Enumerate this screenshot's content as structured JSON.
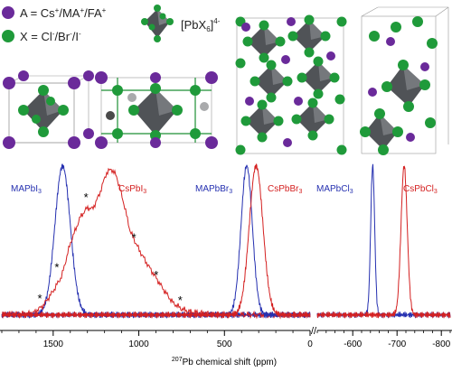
{
  "legend": {
    "a_prefix": "A = Cs",
    "a_sup1": "+",
    "a_mid1": "/MA",
    "a_sup2": "+",
    "a_mid2": "/FA",
    "a_sup3": "+",
    "x_prefix": "X = Cl",
    "x_sup1": "-",
    "x_mid1": "/Br",
    "x_sup2": "-",
    "x_mid2": "/I",
    "x_sup3": "-",
    "octa_pre": "[PbX",
    "octa_sub": "6",
    "octa_post": "]",
    "octa_sup": "4-"
  },
  "colors": {
    "a_site": "#6a2a9a",
    "x_site": "#1f9a3a",
    "octahedron": "#55585c",
    "red_trace": "#d42020",
    "blue_trace": "#2530b0"
  },
  "axis": {
    "xlabel_sup": "207",
    "xlabel": "Pb chemical shift (ppm)",
    "break_mark": "//"
  },
  "chart_data": {
    "type": "line",
    "xlabel": "207Pb chemical shift (ppm)",
    "panels": [
      {
        "name": "left",
        "xlim": [
          1800,
          0
        ],
        "ticks": [
          1500,
          1000,
          500,
          0
        ],
        "tick_labels": [
          "1500",
          "1000",
          "500",
          "0"
        ]
      },
      {
        "name": "right",
        "xlim": [
          -520,
          -820
        ],
        "ticks": [
          -600,
          -700,
          -800
        ],
        "tick_labels": [
          "-600",
          "-700",
          "-800"
        ]
      }
    ],
    "series": [
      {
        "name": "MAPbI3",
        "label_base": "MAPbI",
        "label_sub": "3",
        "color": "blue",
        "panel": "left",
        "center": 1445,
        "width": 45
      },
      {
        "name": "CsPbI3",
        "label_base": "CsPbI",
        "label_sub": "3",
        "color": "red",
        "panel": "left",
        "points": [
          [
            1800,
            0.02
          ],
          [
            1620,
            0.03
          ],
          [
            1560,
            0.08
          ],
          [
            1500,
            0.18
          ],
          [
            1450,
            0.28
          ],
          [
            1400,
            0.5
          ],
          [
            1340,
            0.68
          ],
          [
            1300,
            0.74
          ],
          [
            1270,
            0.73
          ],
          [
            1230,
            0.83
          ],
          [
            1190,
            0.97
          ],
          [
            1160,
            1.0
          ],
          [
            1130,
            0.95
          ],
          [
            1090,
            0.78
          ],
          [
            1050,
            0.58
          ],
          [
            1000,
            0.46
          ],
          [
            950,
            0.36
          ],
          [
            900,
            0.27
          ],
          [
            850,
            0.18
          ],
          [
            800,
            0.1
          ],
          [
            750,
            0.06
          ],
          [
            700,
            0.04
          ],
          [
            600,
            0.03
          ],
          [
            500,
            0.02
          ],
          [
            300,
            0.02
          ],
          [
            0,
            0.02
          ]
        ]
      },
      {
        "name": "MAPbBr3",
        "label_base": "MAPbBr",
        "label_sub": "3",
        "color": "blue",
        "panel": "left",
        "center": 370,
        "width": 33
      },
      {
        "name": "CsPbBr3",
        "label_base": "CsPbBr",
        "label_sub": "3",
        "color": "red",
        "panel": "left",
        "center": 315,
        "width": 40
      },
      {
        "name": "MAPbCl3",
        "label_base": "MAPbCl",
        "label_sub": "3",
        "color": "blue",
        "panel": "right",
        "center": -645,
        "width": 4.5
      },
      {
        "name": "CsPbCl3",
        "label_base": "CsPbCl",
        "label_sub": "3",
        "color": "red",
        "panel": "right",
        "center": -716,
        "width": 7
      }
    ],
    "annotations": [
      {
        "text": "*",
        "x": 1560,
        "y": 0.09
      },
      {
        "text": "*",
        "x": 1460,
        "y": 0.3
      },
      {
        "text": "*",
        "x": 1290,
        "y": 0.77
      },
      {
        "text": "*",
        "x": 1010,
        "y": 0.5
      },
      {
        "text": "*",
        "x": 880,
        "y": 0.25
      },
      {
        "text": "*",
        "x": 740,
        "y": 0.08
      }
    ]
  }
}
